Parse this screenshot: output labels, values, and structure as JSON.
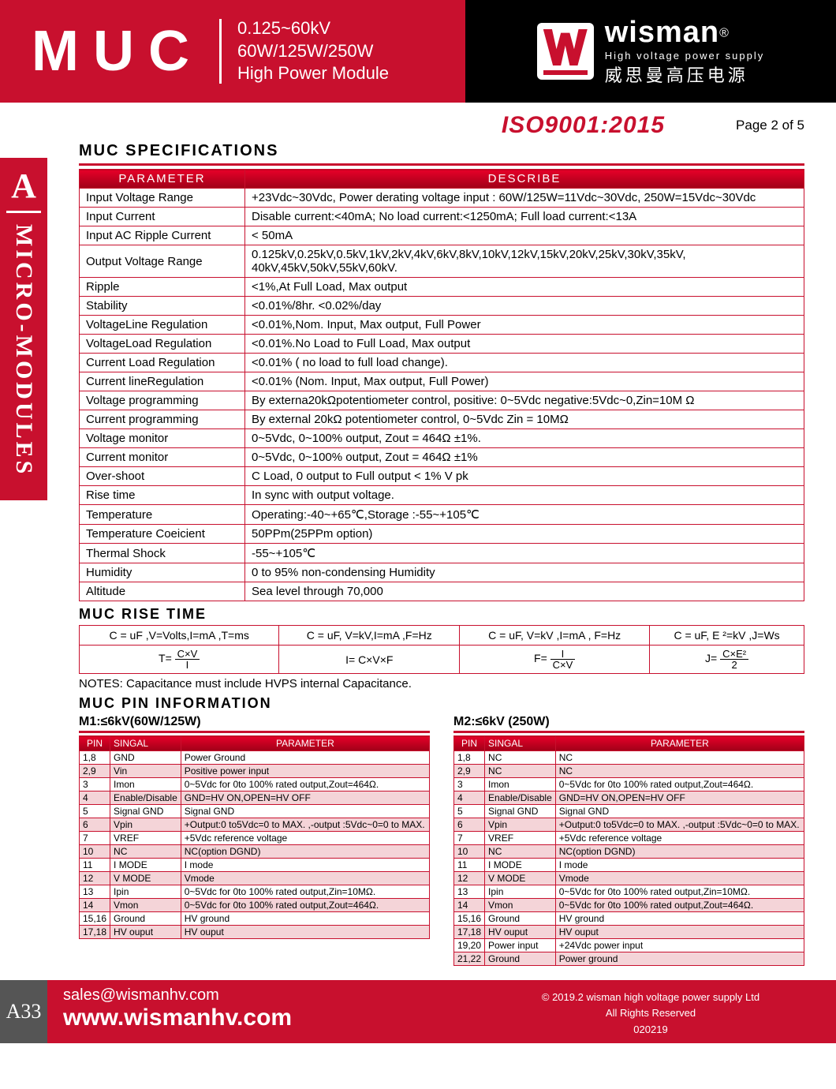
{
  "banner": {
    "product": "MUC",
    "line1": "0.125~60kV",
    "line2": "60W/125W/250W",
    "line3": "High Power Module",
    "brand": "wisman",
    "reg": "®",
    "tagline": "High voltage power supply",
    "cn": "威思曼高压电源"
  },
  "iso": "ISO9001:2015",
  "page": "Page 2 of 5",
  "section_spec": "MUC  SPECIFICATIONS",
  "spec_headers": {
    "param": "PARAMETER",
    "desc": "DESCRIBE"
  },
  "specs": [
    {
      "p": "Input Voltage Range",
      "d": "+23Vdc~30Vdc, Power derating voltage input : 60W/125W=11Vdc~30Vdc, 250W=15Vdc~30Vdc"
    },
    {
      "p": "Input Current",
      "d": "Disable current:<40mA; No load current:<1250mA; Full load current:<13A"
    },
    {
      "p": "Input AC Ripple Current",
      "d": "< 50mA"
    },
    {
      "p": "Output Voltage Range",
      "d": "0.125kV,0.25kV,0.5kV,1kV,2kV,4kV,6kV,8kV,10kV,12kV,15kV,20kV,25kV,30kV,35kV, 40kV,45kV,50kV,55kV,60kV."
    },
    {
      "p": "Ripple",
      "d": "<1%,At Full Load, Max output"
    },
    {
      "p": "Stability",
      "d": "<0.01%/8hr. <0.02%/day"
    },
    {
      "p": "VoltageLine Regulation",
      "d": "<0.01%,Nom. Input, Max output, Full Power"
    },
    {
      "p": "VoltageLoad Regulation",
      "d": "<0.01%.No Load to Full Load, Max output"
    },
    {
      "p": "Current Load Regulation",
      "d": "<0.01% ( no load to full load change)."
    },
    {
      "p": "Current lineRegulation",
      "d": "<0.01% (Nom. Input, Max output, Full Power)"
    },
    {
      "p": "Voltage programming",
      "d": "By externa20kΩpotentiometer control, positive: 0~5Vdc  negative:5Vdc~0,Zin=10M Ω"
    },
    {
      "p": "Current programming",
      "d": "By external 20kΩ potentiometer control,  0~5Vdc Zin = 10MΩ"
    },
    {
      "p": "Voltage monitor",
      "d": "0~5Vdc, 0~100% output, Zout = 464Ω ±1%."
    },
    {
      "p": "Current monitor",
      "d": "0~5Vdc, 0~100% output, Zout = 464Ω ±1%"
    },
    {
      "p": "Over-shoot",
      "d": "C Load, 0 output  to Full output < 1% V pk"
    },
    {
      "p": "Rise time",
      "d": "In sync with output voltage."
    },
    {
      "p": "Temperature",
      "d": "Operating:-40~+65℃,Storage :-55~+105℃"
    },
    {
      "p": "Temperature Coeicient",
      "d": "50PPm(25PPm option)"
    },
    {
      "p": "Thermal Shock",
      "d": "-55~+105℃"
    },
    {
      "p": "Humidity",
      "d": "0 to 95% non-condensing Humidity"
    },
    {
      "p": "Altitude",
      "d": "Sea level through 70,000"
    }
  ],
  "section_rise": "MUC RISE TIME",
  "rise_hdr": [
    "C = uF ,V=Volts,I=mA ,T=ms",
    "C = uF, V=kV,I=mA ,F=Hz",
    "C = uF, V=kV ,I=mA , F=Hz",
    "C = uF, E ²=kV ,J=Ws"
  ],
  "rise_eq": {
    "t": "T=",
    "cv": "C×V",
    "i": "I",
    "ieq": "I= C×V×F",
    "f": "F=",
    "j": "J=",
    "ce2": "C×E²",
    "two": "2"
  },
  "notes": "NOTES: Capacitance must include HVPS internal Capacitance.",
  "section_pin": "MUC PIN  INFORMATION",
  "pin_headers": {
    "pin": "PIN",
    "sig": "SINGAL",
    "param": "PARAMETER"
  },
  "m1_title": "M1:≤6kV(60W/125W)",
  "m1": [
    {
      "pin": "1,8",
      "s": "GND",
      "d": "Power Ground"
    },
    {
      "pin": "2,9",
      "s": "Vin",
      "d": "Positive power input"
    },
    {
      "pin": "3",
      "s": "Imon",
      "d": "0~5Vdc for 0to 100% rated output,Zout=464Ω."
    },
    {
      "pin": "4",
      "s": "Enable/Disable",
      "d": "GND=HV ON,OPEN=HV OFF"
    },
    {
      "pin": "5",
      "s": "Signal GND",
      "d": "Signal GND"
    },
    {
      "pin": "6",
      "s": "Vpin",
      "d": "+Output:0 to5Vdc=0 to MAX. ,-output :5Vdc~0=0 to MAX."
    },
    {
      "pin": "7",
      "s": "VREF",
      "d": "+5Vdc reference voltage"
    },
    {
      "pin": "10",
      "s": "NC",
      "d": "NC(option DGND)"
    },
    {
      "pin": "11",
      "s": "I MODE",
      "d": "I mode"
    },
    {
      "pin": "12",
      "s": "V MODE",
      "d": "Vmode"
    },
    {
      "pin": "13",
      "s": "Ipin",
      "d": "0~5Vdc for 0to 100% rated output,Zin=10MΩ."
    },
    {
      "pin": "14",
      "s": "Vmon",
      "d": "0~5Vdc for 0to 100% rated output,Zout=464Ω."
    },
    {
      "pin": "15,16",
      "s": "Ground",
      "d": "HV  ground"
    },
    {
      "pin": "17,18",
      "s": "HV ouput",
      "d": "HV ouput"
    }
  ],
  "m2_title": "M2:≤6kV (250W)",
  "m2": [
    {
      "pin": "1,8",
      "s": "NC",
      "d": "NC"
    },
    {
      "pin": "2,9",
      "s": "NC",
      "d": "NC"
    },
    {
      "pin": "3",
      "s": "Imon",
      "d": "0~5Vdc for 0to 100% rated output,Zout=464Ω."
    },
    {
      "pin": "4",
      "s": "Enable/Disable",
      "d": "GND=HV ON,OPEN=HV OFF"
    },
    {
      "pin": "5",
      "s": "Signal GND",
      "d": "Signal GND"
    },
    {
      "pin": "6",
      "s": "Vpin",
      "d": "+Output:0 to5Vdc=0 to MAX. ,-output :5Vdc~0=0 to MAX."
    },
    {
      "pin": "7",
      "s": "VREF",
      "d": "+5Vdc reference voltage"
    },
    {
      "pin": "10",
      "s": "NC",
      "d": "NC(option DGND)"
    },
    {
      "pin": "11",
      "s": "I MODE",
      "d": "I mode"
    },
    {
      "pin": "12",
      "s": "V MODE",
      "d": "Vmode"
    },
    {
      "pin": "13",
      "s": "Ipin",
      "d": "0~5Vdc for 0to 100% rated output,Zin=10MΩ."
    },
    {
      "pin": "14",
      "s": "Vmon",
      "d": "0~5Vdc for 0to 100% rated output,Zout=464Ω."
    },
    {
      "pin": "15,16",
      "s": "Ground",
      "d": "HV  ground"
    },
    {
      "pin": "17,18",
      "s": "HV ouput",
      "d": "HV ouput"
    },
    {
      "pin": "19,20",
      "s": "Power input",
      "d": "+24Vdc power input"
    },
    {
      "pin": "21,22",
      "s": "Ground",
      "d": "Power  ground"
    }
  ],
  "sidetab": {
    "a": "A",
    "txt": "MICRO-MODULES"
  },
  "footer": {
    "tag": "A33",
    "mail": "sales@wismanhv.com",
    "url": "www.wismanhv.com",
    "copy": "© 2019.2 wisman high voltage power supply Ltd",
    "rights": "All Rights Reserved",
    "code": "020219"
  },
  "colors": {
    "brand": "#c8102e",
    "black": "#000000"
  }
}
